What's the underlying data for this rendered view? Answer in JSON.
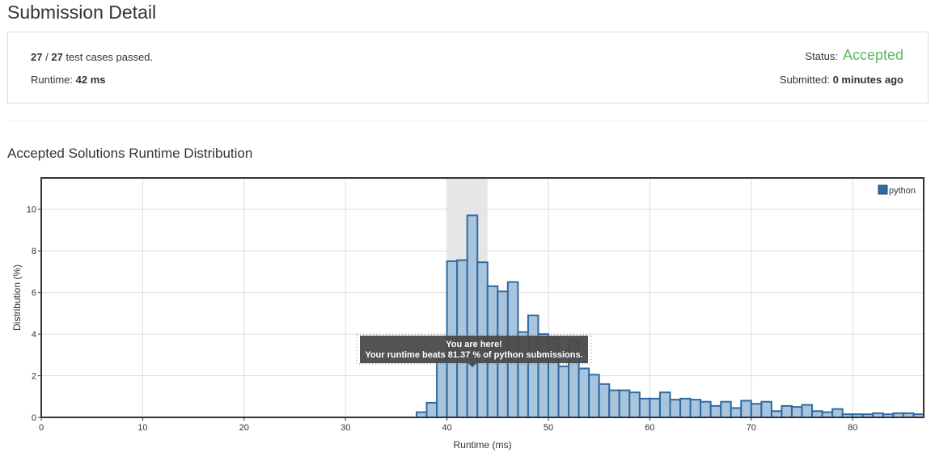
{
  "page": {
    "title": "Submission Detail"
  },
  "summary": {
    "passed": "27",
    "separator": " / ",
    "total": "27",
    "passed_suffix": " test cases passed.",
    "runtime_label": "Runtime: ",
    "runtime_value": "42 ms",
    "status_label": "Status:",
    "status_value": "Accepted",
    "submitted_label": "Submitted: ",
    "submitted_value": "0 minutes ago"
  },
  "section": {
    "title": "Accepted Solutions Runtime Distribution"
  },
  "colors": {
    "bar_fill": "#a9c4dd",
    "bar_stroke": "#2f6aa0",
    "highlight_band": "#e6e6e6",
    "status_accent": "#5cb85c",
    "tooltip_bg": "#4a4a4a"
  },
  "chart_data": {
    "type": "bar",
    "xlabel": "Runtime (ms)",
    "ylabel": "Distribution (%)",
    "xlim": [
      0,
      87
    ],
    "ylim": [
      0,
      11.5
    ],
    "x_ticks": [
      0,
      10,
      20,
      30,
      40,
      50,
      60,
      70,
      80
    ],
    "y_ticks": [
      0,
      2,
      4,
      6,
      8,
      10
    ],
    "grid": true,
    "legend": {
      "position": "top-right",
      "entries": [
        "python"
      ]
    },
    "bin_width": 1,
    "highlight_range": [
      40,
      44
    ],
    "series": [
      {
        "name": "python",
        "x": [
          37,
          38,
          39,
          40,
          41,
          42,
          43,
          44,
          45,
          46,
          47,
          48,
          49,
          50,
          51,
          52,
          53,
          54,
          55,
          56,
          57,
          58,
          59,
          60,
          61,
          62,
          63,
          64,
          65,
          66,
          67,
          68,
          69,
          70,
          71,
          72,
          73,
          74,
          75,
          76,
          77,
          78,
          79,
          80,
          81,
          82,
          83,
          84,
          85,
          86
        ],
        "values": [
          0.25,
          0.7,
          2.8,
          7.5,
          7.55,
          9.7,
          7.45,
          6.3,
          6.05,
          6.5,
          4.1,
          4.9,
          4.0,
          3.8,
          2.45,
          3.7,
          2.35,
          2.05,
          1.6,
          1.3,
          1.3,
          1.2,
          0.9,
          0.9,
          1.2,
          0.85,
          0.9,
          0.85,
          0.75,
          0.55,
          0.75,
          0.45,
          0.8,
          0.65,
          0.75,
          0.3,
          0.55,
          0.5,
          0.6,
          0.3,
          0.25,
          0.4,
          0.15,
          0.15,
          0.15,
          0.2,
          0.15,
          0.2,
          0.2,
          0.15
        ]
      }
    ],
    "tooltip": {
      "line1": "You are here!",
      "line2": "Your runtime beats 81.37 % of python submissions.",
      "x": 42.5
    }
  }
}
